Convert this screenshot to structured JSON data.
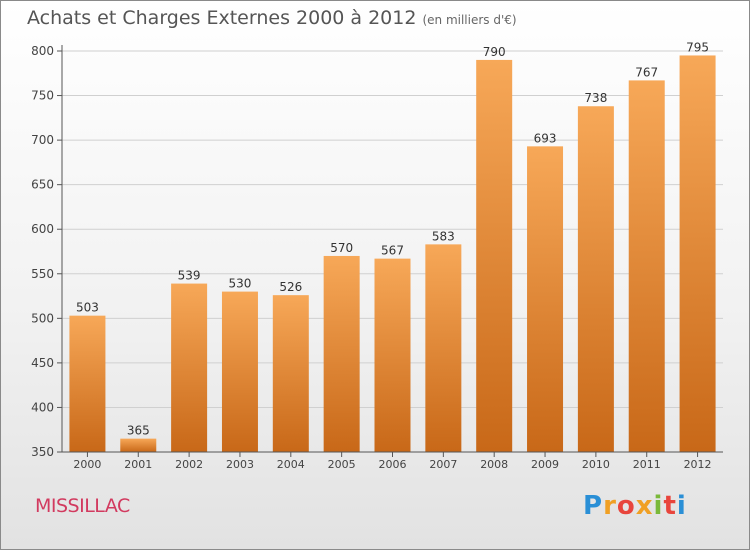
{
  "header": {
    "title": "Achats et Charges Externes 2000 à 2012",
    "subtitle": "(en milliers d'€)"
  },
  "footer": {
    "commune": "MISSILLAC",
    "logo_text": "Proxiti"
  },
  "colors": {
    "bar_top": "#f7a858",
    "bar_bottom": "#c86818",
    "commune": "#d23a5f"
  },
  "chart_data": {
    "type": "bar",
    "title": "Achats et Charges Externes 2000 à 2012",
    "subtitle": "(en milliers d'€)",
    "categories": [
      "2000",
      "2001",
      "2002",
      "2003",
      "2004",
      "2005",
      "2006",
      "2007",
      "2008",
      "2009",
      "2010",
      "2011",
      "2012"
    ],
    "values": [
      503,
      365,
      539,
      530,
      526,
      570,
      567,
      583,
      790,
      693,
      738,
      767,
      795
    ],
    "ylim": [
      350,
      800
    ],
    "yticks": [
      350,
      400,
      450,
      500,
      550,
      600,
      650,
      700,
      750,
      800
    ],
    "grid": true,
    "data_labels": true
  }
}
